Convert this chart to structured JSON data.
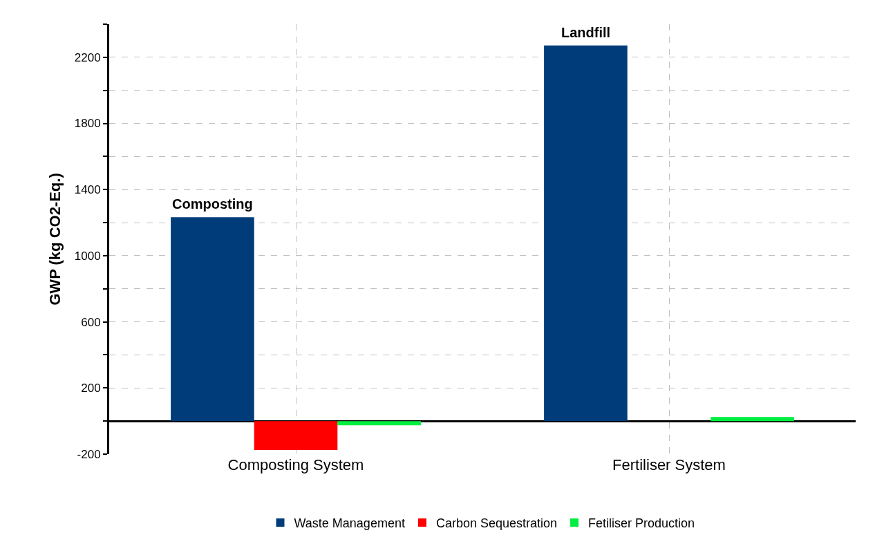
{
  "chart_data": {
    "type": "bar",
    "ylabel": "GWP (kg CO2-Eq.)",
    "categories": [
      "Composting System",
      "Fertiliser System"
    ],
    "series": [
      {
        "name": "Waste Management",
        "color": "#003b7a",
        "values": [
          1233,
          2271
        ]
      },
      {
        "name": "Carbon Sequestration",
        "color": "#ff0000",
        "values": [
          -175,
          null
        ]
      },
      {
        "name": "Fetiliser Production",
        "color": "#00ee40",
        "values": [
          -25,
          25
        ]
      }
    ],
    "ylim": [
      -200,
      2400
    ],
    "yticks": [
      -200,
      {
        "value": 0,
        "label": null
      },
      200,
      {
        "value": 400,
        "label": null
      },
      600,
      {
        "value": 800,
        "label": null
      },
      1000,
      {
        "value": 1200,
        "label": null
      },
      1400,
      {
        "value": 1600,
        "label": null
      },
      1800,
      {
        "value": 2000,
        "label": null
      },
      2200,
      {
        "value": 2400,
        "label": null
      }
    ],
    "annotations": [
      "Composting",
      "Landfill"
    ],
    "grid": true,
    "legend": "bottom"
  }
}
